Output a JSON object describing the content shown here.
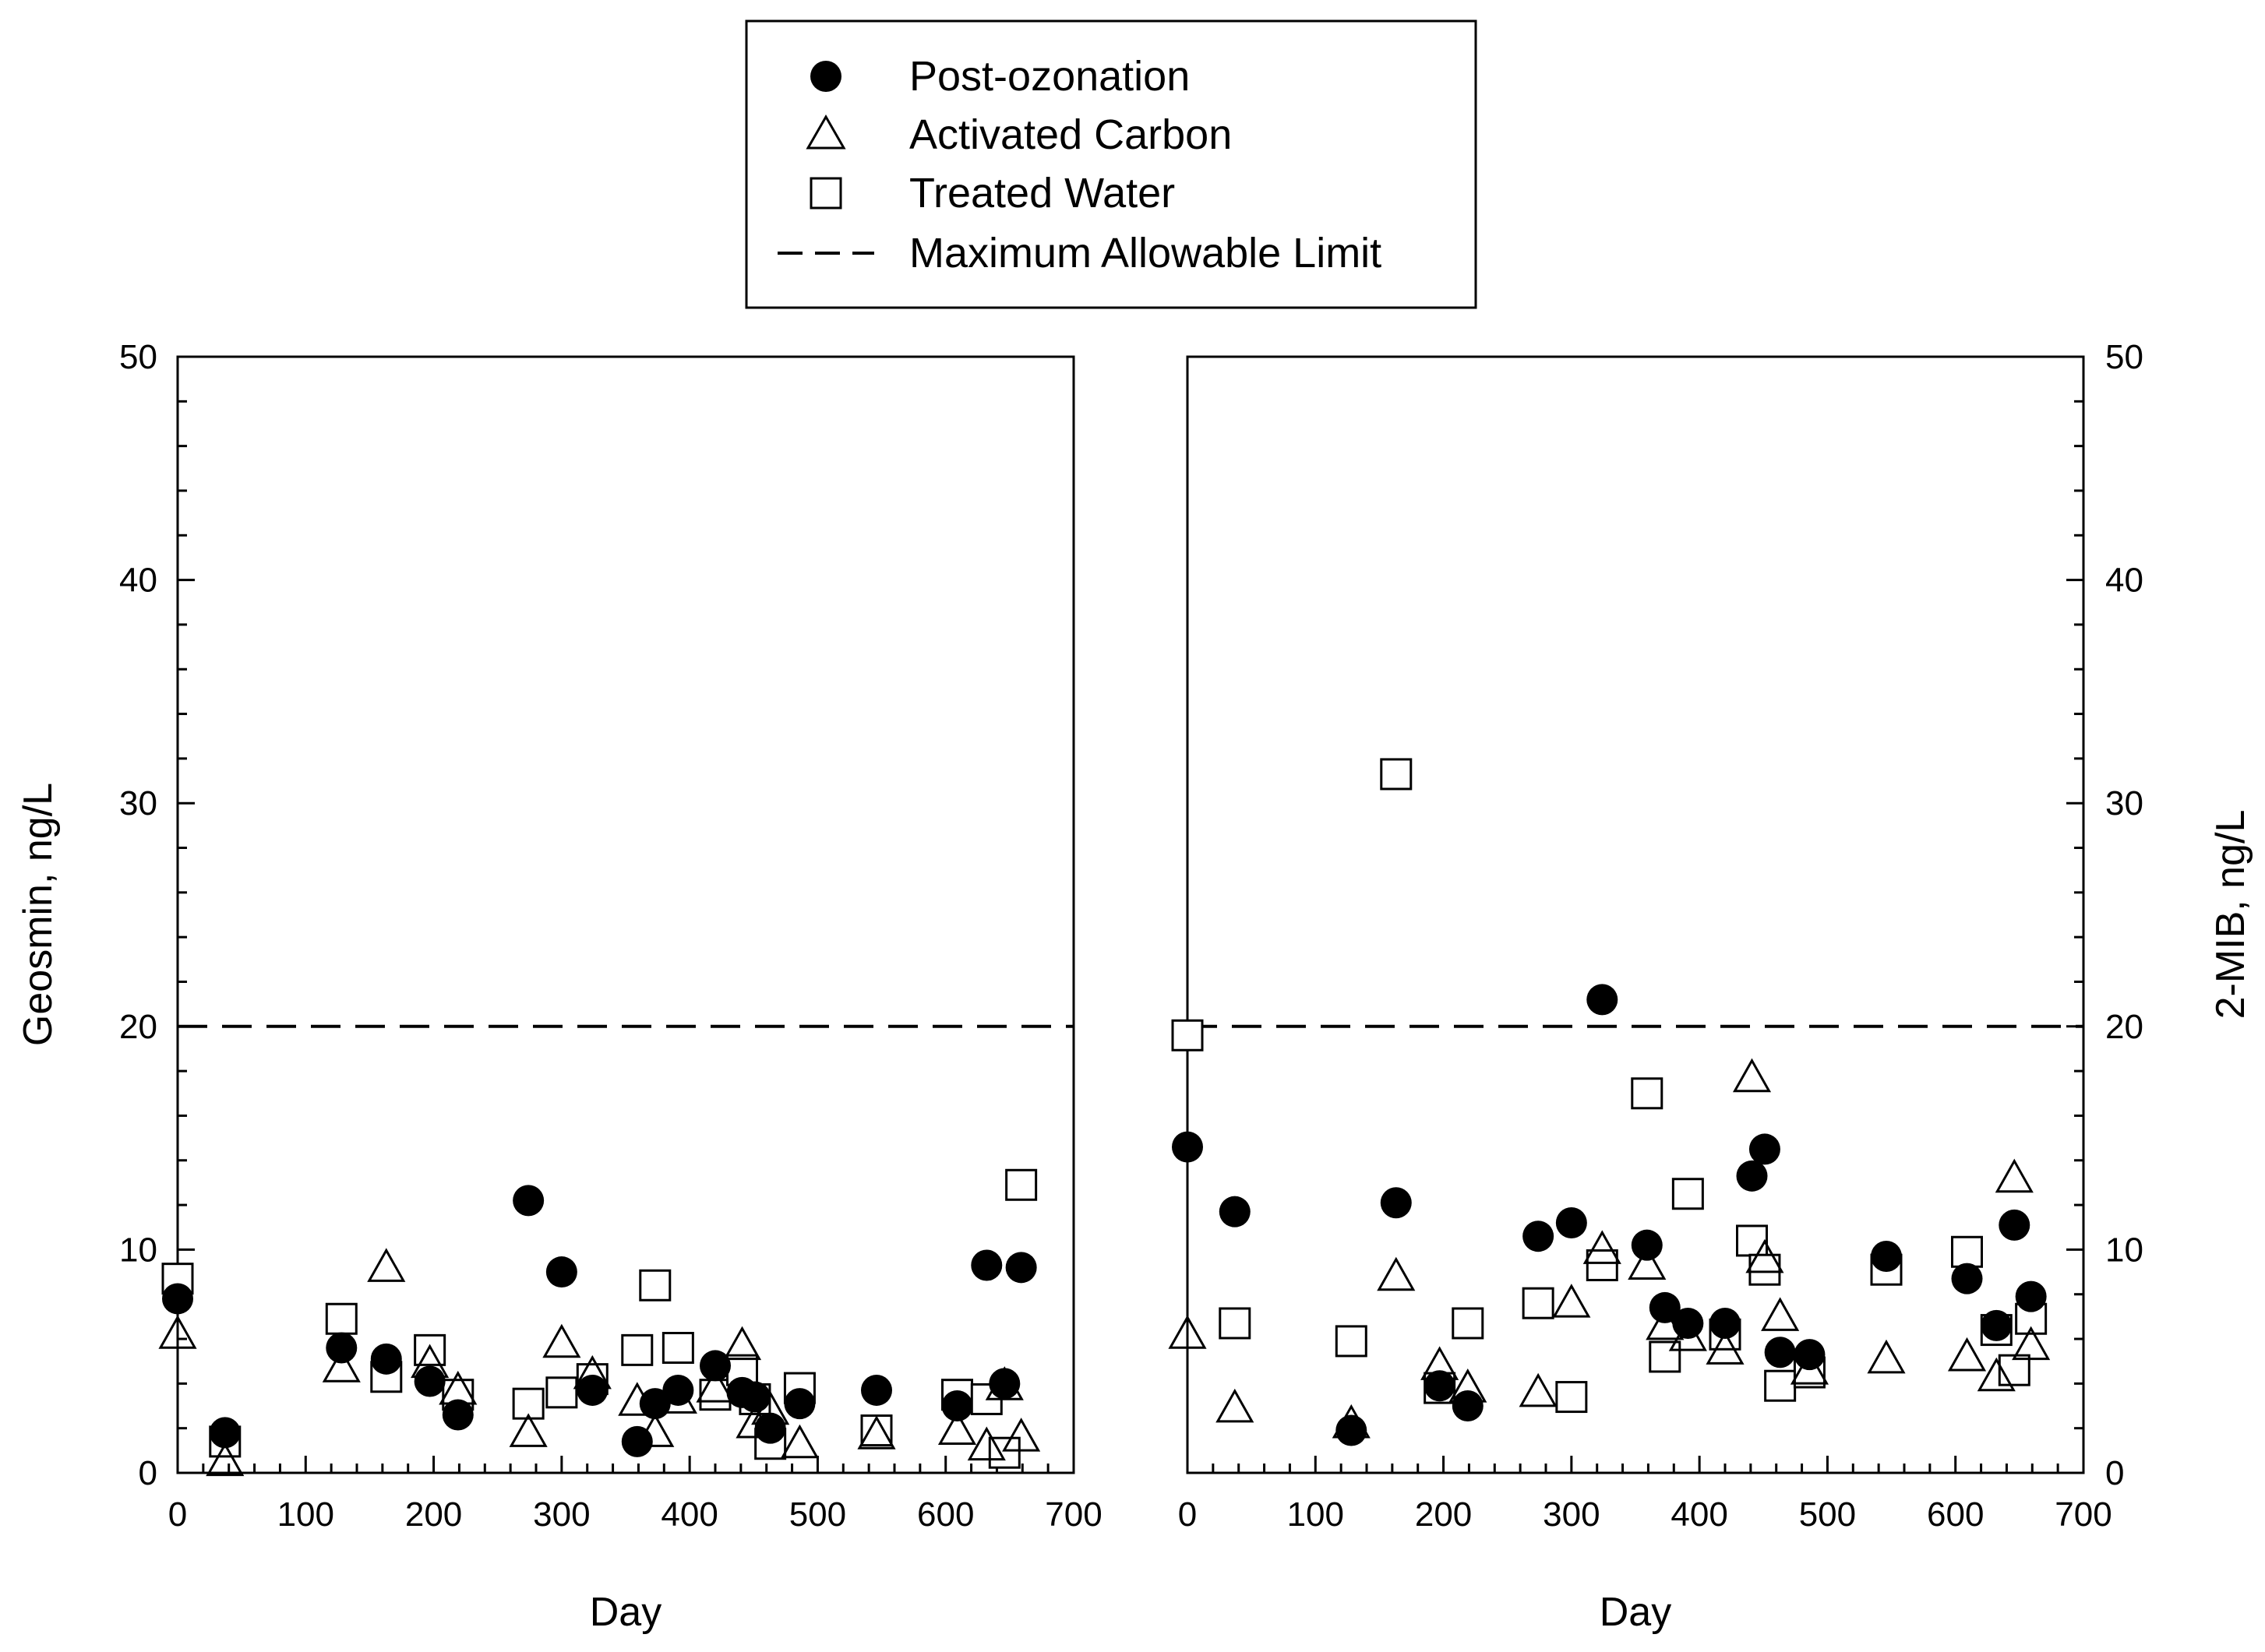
{
  "legend": {
    "items": [
      {
        "key": "post",
        "label": "Post-ozonation",
        "marker": "filled-circle"
      },
      {
        "key": "carbon",
        "label": "Activated Carbon",
        "marker": "open-triangle"
      },
      {
        "key": "treated",
        "label": "Treated Water",
        "marker": "open-square"
      },
      {
        "key": "limit",
        "label": "Maximum Allowable Limit",
        "marker": "dashed-line"
      }
    ]
  },
  "chart_data": [
    {
      "type": "scatter",
      "panel": "left",
      "xlabel": "Day",
      "ylabel": "Geosmin, ng/L",
      "xlim": [
        0,
        700
      ],
      "ylim": [
        0,
        50
      ],
      "xticks": [
        0,
        100,
        200,
        300,
        400,
        500,
        600,
        700
      ],
      "yticks": [
        0,
        10,
        20,
        30,
        40,
        50
      ],
      "y_axis_side": "left",
      "limit": 20,
      "series": [
        {
          "name": "Post-ozonation",
          "points": [
            [
              0,
              7.8
            ],
            [
              37,
              1.8
            ],
            [
              128,
              5.6
            ],
            [
              163,
              5.1
            ],
            [
              197,
              4.1
            ],
            [
              219,
              2.6
            ],
            [
              274,
              12.2
            ],
            [
              300,
              9.0
            ],
            [
              324,
              3.7
            ],
            [
              359,
              1.4
            ],
            [
              373,
              3.1
            ],
            [
              391,
              3.7
            ],
            [
              420,
              4.8
            ],
            [
              441,
              3.6
            ],
            [
              451,
              3.4
            ],
            [
              463,
              2.0
            ],
            [
              486,
              3.1
            ],
            [
              546,
              3.7
            ],
            [
              609,
              3.0
            ],
            [
              632,
              9.3
            ],
            [
              646,
              4.0
            ],
            [
              659,
              9.2
            ]
          ]
        },
        {
          "name": "Activated Carbon",
          "points": [
            [
              0,
              6.2
            ],
            [
              37,
              0.5
            ],
            [
              128,
              4.7
            ],
            [
              163,
              9.2
            ],
            [
              197,
              4.9
            ],
            [
              219,
              3.7
            ],
            [
              274,
              1.8
            ],
            [
              300,
              5.8
            ],
            [
              324,
              4.4
            ],
            [
              359,
              3.2
            ],
            [
              373,
              1.8
            ],
            [
              391,
              3.3
            ],
            [
              420,
              3.8
            ],
            [
              441,
              5.7
            ],
            [
              451,
              2.2
            ],
            [
              463,
              2.8
            ],
            [
              486,
              1.3
            ],
            [
              546,
              1.7
            ],
            [
              609,
              1.9
            ],
            [
              632,
              1.2
            ],
            [
              646,
              3.9
            ],
            [
              659,
              1.6
            ]
          ]
        },
        {
          "name": "Treated Water",
          "points": [
            [
              0,
              8.7
            ],
            [
              37,
              1.4
            ],
            [
              128,
              6.9
            ],
            [
              163,
              4.3
            ],
            [
              197,
              5.5
            ],
            [
              219,
              3.5
            ],
            [
              274,
              3.1
            ],
            [
              300,
              3.6
            ],
            [
              324,
              4.2
            ],
            [
              359,
              5.5
            ],
            [
              373,
              8.4
            ],
            [
              391,
              5.6
            ],
            [
              420,
              3.5
            ],
            [
              441,
              4.6
            ],
            [
              451,
              3.3
            ],
            [
              463,
              1.3
            ],
            [
              486,
              3.8
            ],
            [
              546,
              1.9
            ],
            [
              609,
              3.5
            ],
            [
              632,
              3.3
            ],
            [
              646,
              0.9
            ],
            [
              659,
              12.9
            ]
          ]
        }
      ]
    },
    {
      "type": "scatter",
      "panel": "right",
      "xlabel": "Day",
      "ylabel": "2-MIB, ng/L",
      "xlim": [
        0,
        700
      ],
      "ylim": [
        0,
        50
      ],
      "xticks": [
        0,
        100,
        200,
        300,
        400,
        500,
        600,
        700
      ],
      "yticks": [
        0,
        10,
        20,
        30,
        40,
        50
      ],
      "y_axis_side": "right",
      "limit": 20,
      "series": [
        {
          "name": "Post-ozonation",
          "points": [
            [
              0,
              14.6
            ],
            [
              37,
              11.7
            ],
            [
              128,
              1.9
            ],
            [
              163,
              12.1
            ],
            [
              197,
              3.9
            ],
            [
              219,
              3.0
            ],
            [
              274,
              10.6
            ],
            [
              300,
              11.2
            ],
            [
              324,
              21.2
            ],
            [
              359,
              10.2
            ],
            [
              373,
              7.4
            ],
            [
              391,
              6.7
            ],
            [
              420,
              6.7
            ],
            [
              441,
              13.3
            ],
            [
              451,
              14.5
            ],
            [
              463,
              5.4
            ],
            [
              486,
              5.3
            ],
            [
              546,
              9.7
            ],
            [
              609,
              8.7
            ],
            [
              632,
              6.6
            ],
            [
              646,
              11.1
            ],
            [
              659,
              7.9
            ]
          ]
        },
        {
          "name": "Activated Carbon",
          "points": [
            [
              0,
              6.2
            ],
            [
              37,
              2.9
            ],
            [
              128,
              2.2
            ],
            [
              163,
              8.8
            ],
            [
              197,
              4.8
            ],
            [
              219,
              3.8
            ],
            [
              274,
              3.6
            ],
            [
              300,
              7.6
            ],
            [
              324,
              10.0
            ],
            [
              359,
              9.3
            ],
            [
              373,
              6.6
            ],
            [
              391,
              6.1
            ],
            [
              420,
              5.5
            ],
            [
              441,
              17.7
            ],
            [
              451,
              9.6
            ],
            [
              463,
              7.0
            ],
            [
              486,
              4.6
            ],
            [
              546,
              5.1
            ],
            [
              609,
              5.2
            ],
            [
              632,
              4.3
            ],
            [
              646,
              13.2
            ],
            [
              659,
              5.7
            ]
          ]
        },
        {
          "name": "Treated Water",
          "points": [
            [
              0,
              19.6
            ],
            [
              37,
              6.7
            ],
            [
              128,
              5.9
            ],
            [
              163,
              31.3
            ],
            [
              197,
              3.8
            ],
            [
              219,
              6.7
            ],
            [
              274,
              7.6
            ],
            [
              300,
              3.4
            ],
            [
              324,
              9.3
            ],
            [
              359,
              17.0
            ],
            [
              373,
              5.2
            ],
            [
              391,
              12.5
            ],
            [
              420,
              6.2
            ],
            [
              441,
              10.4
            ],
            [
              451,
              9.1
            ],
            [
              463,
              3.9
            ],
            [
              486,
              4.5
            ],
            [
              546,
              9.1
            ],
            [
              609,
              9.9
            ],
            [
              632,
              6.4
            ],
            [
              646,
              4.6
            ],
            [
              659,
              6.9
            ]
          ]
        }
      ]
    }
  ]
}
